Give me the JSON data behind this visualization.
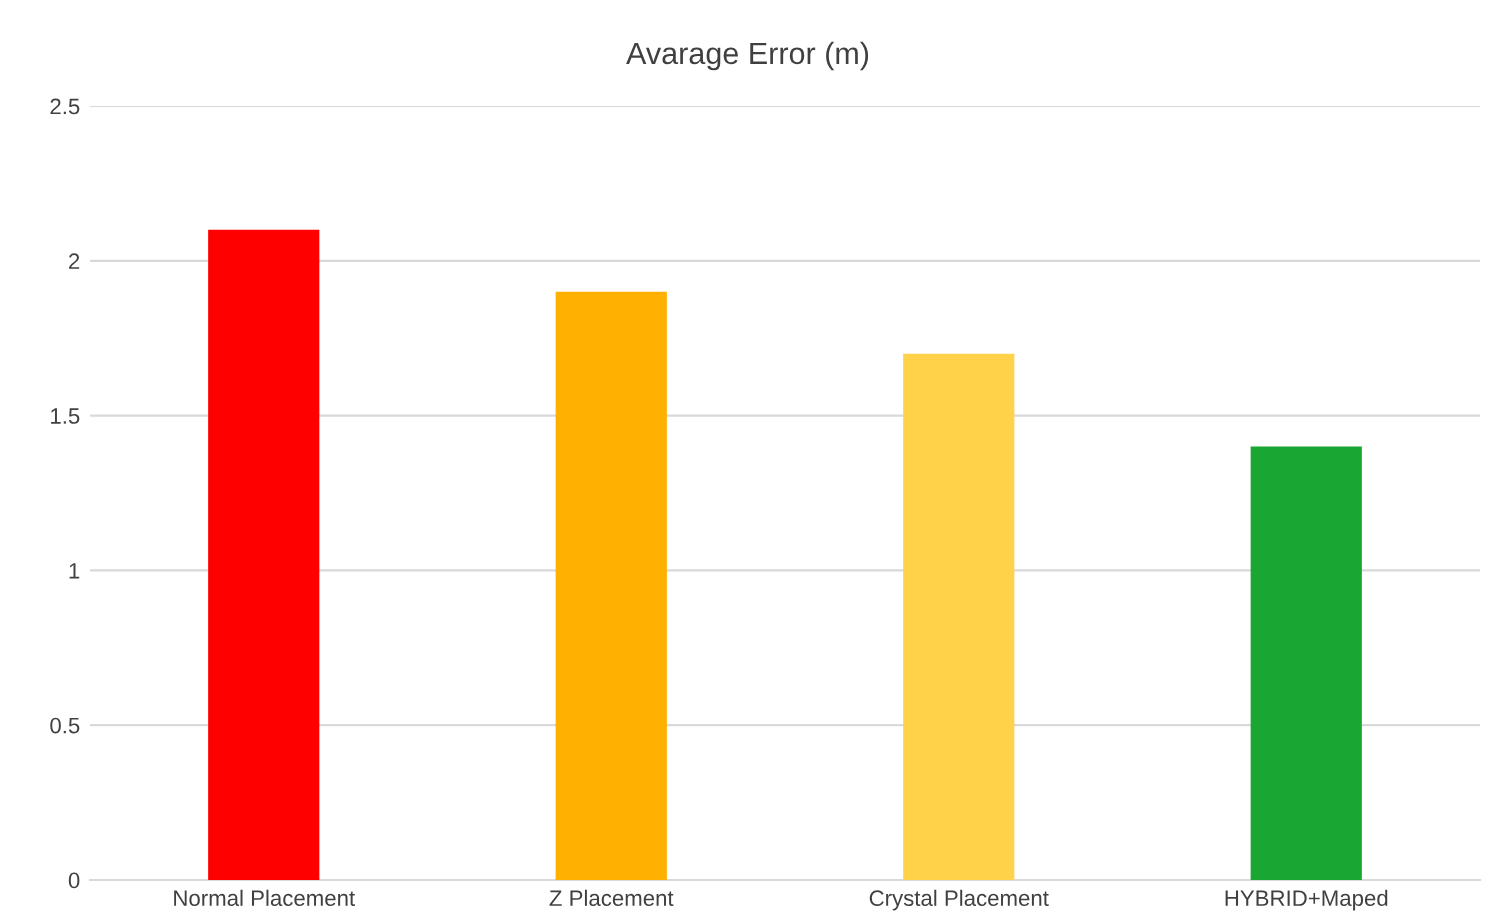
{
  "chart_data": {
    "type": "bar",
    "title": "Avarage Error (m)",
    "categories": [
      "Normal Placement",
      "Z Placement",
      "Crystal Placement",
      "HYBRID+Maped"
    ],
    "values": [
      2.1,
      1.9,
      1.7,
      1.4
    ],
    "colors": [
      "#ff0000",
      "#ffb000",
      "#ffd24a",
      "#1aa632"
    ],
    "ylim": [
      0,
      2.5
    ],
    "yticks": [
      0,
      0.5,
      1,
      1.5,
      2,
      2.5
    ],
    "grid": "y"
  }
}
